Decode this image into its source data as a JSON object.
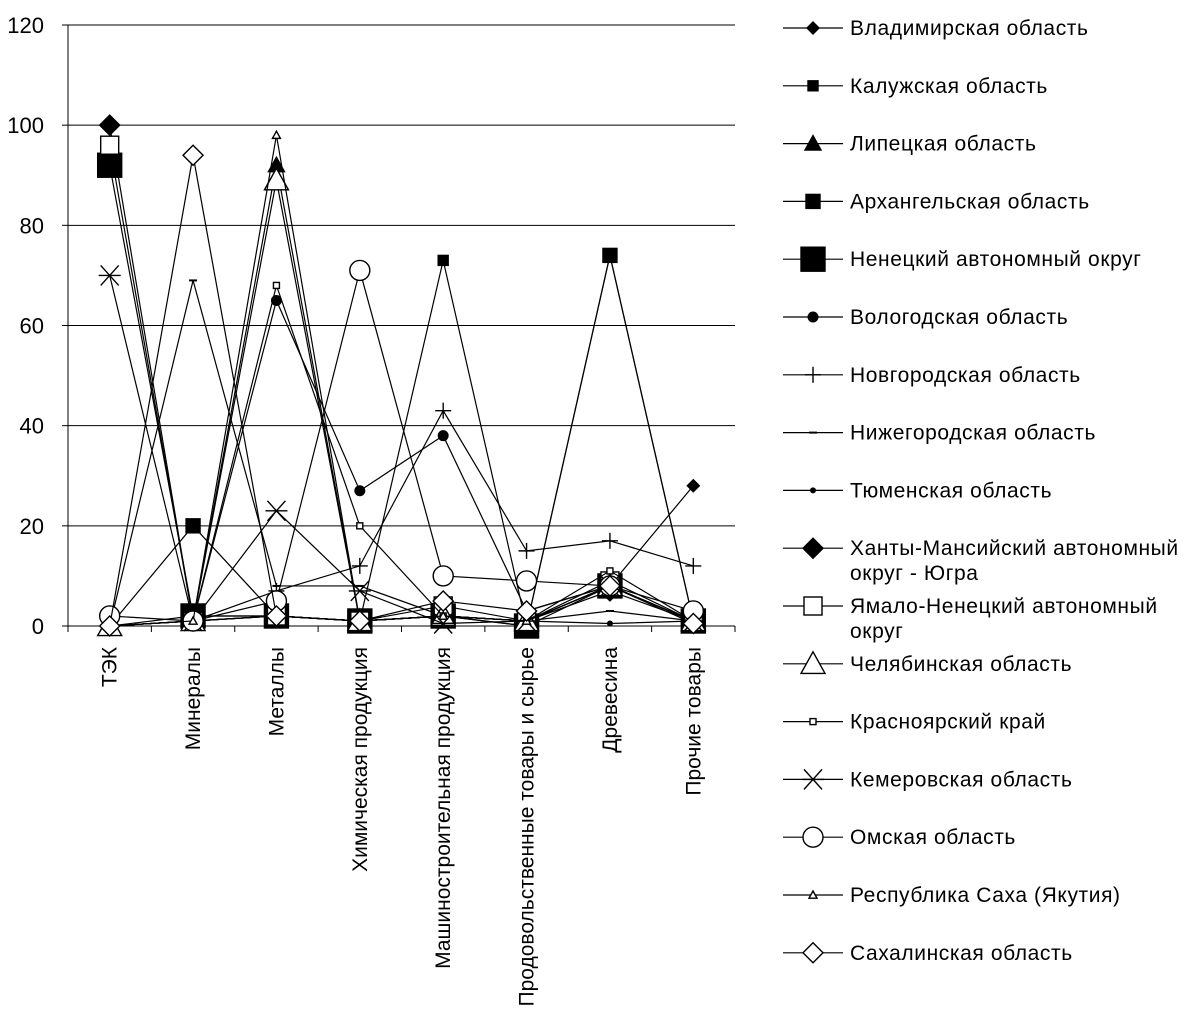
{
  "chart_data": {
    "type": "line",
    "categories": [
      "ТЭК",
      "Минералы",
      "Металлы",
      "Химическая продукция",
      "Машиностроительная продукция",
      "Продовольственные товары и сырье",
      "Древесина",
      "Прочие товары"
    ],
    "ylim": [
      0,
      120
    ],
    "yticks": [
      0,
      20,
      40,
      60,
      80,
      100,
      120
    ],
    "grid": "horizontal",
    "legend_position": "right",
    "line_color": "#000000",
    "series": [
      {
        "name": "Владимирская область",
        "marker": "diamond-small",
        "values": [
          0,
          1,
          2,
          1,
          2,
          1,
          8,
          28
        ]
      },
      {
        "name": "Калужская область",
        "marker": "square-small",
        "values": [
          0,
          2,
          2,
          1,
          73,
          0,
          74,
          1
        ]
      },
      {
        "name": "Липецкая область",
        "marker": "triangle-filled",
        "values": [
          0,
          1,
          92,
          1,
          2,
          1,
          8,
          1
        ]
      },
      {
        "name": "Архангельская область",
        "marker": "square-medium",
        "values": [
          0,
          20,
          2,
          1,
          2,
          0,
          74,
          1
        ]
      },
      {
        "name": "Ненецкий автономный округ",
        "marker": "square-large",
        "values": [
          92,
          2,
          2,
          1,
          2,
          0,
          8,
          1
        ]
      },
      {
        "name": "Вологодская область",
        "marker": "circle-filled",
        "values": [
          0,
          1,
          65,
          27,
          38,
          3,
          8,
          1
        ]
      },
      {
        "name": "Новгородская область",
        "marker": "plus",
        "values": [
          0,
          1,
          7,
          12,
          43,
          15,
          17,
          12
        ]
      },
      {
        "name": "Нижегородская область",
        "marker": "dash",
        "values": [
          0,
          69,
          8,
          8,
          2,
          1,
          3,
          1
        ]
      },
      {
        "name": "Тюменская область",
        "marker": "dot",
        "values": [
          0,
          1,
          2,
          1,
          2,
          1,
          0.5,
          1
        ]
      },
      {
        "name": "Ханты-Мансийский автономный округ - Югра",
        "marker": "diamond-filled",
        "values": [
          100,
          1,
          2,
          1,
          2,
          1,
          7,
          1
        ]
      },
      {
        "name": "Ямало-Ненецкий автономный округ",
        "marker": "square-open",
        "values": [
          96,
          1,
          2,
          1,
          4,
          1,
          9,
          1
        ]
      },
      {
        "name": "Челябинская область",
        "marker": "triangle-open",
        "values": [
          0,
          1,
          89,
          1,
          2,
          1,
          8,
          1
        ]
      },
      {
        "name": "Красноярский край",
        "marker": "square-open-small",
        "values": [
          0,
          1,
          68,
          20,
          2,
          1,
          11,
          1
        ]
      },
      {
        "name": "Кемеровская область",
        "marker": "asterisk",
        "values": [
          70,
          1,
          23,
          7,
          0.5,
          1,
          8,
          1
        ]
      },
      {
        "name": "Омская область",
        "marker": "circle-open",
        "values": [
          2,
          1,
          5,
          71,
          10,
          9,
          8,
          3
        ]
      },
      {
        "name": "Республика Саха (Якутия)",
        "marker": "triangle-open-small",
        "values": [
          0,
          1,
          98,
          1,
          2,
          1,
          8,
          1
        ]
      },
      {
        "name": "Сахалинская область",
        "marker": "diamond-open",
        "values": [
          0,
          94,
          2,
          1,
          5,
          3,
          8,
          0.5
        ]
      }
    ]
  }
}
